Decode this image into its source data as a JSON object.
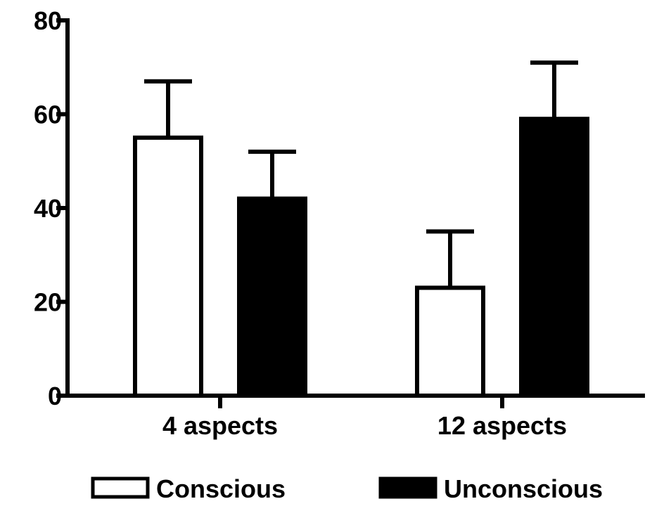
{
  "chart_data": {
    "type": "bar",
    "categories": [
      "4 aspects",
      "12 aspects"
    ],
    "series": [
      {
        "name": "Conscious",
        "values": [
          55,
          23
        ],
        "errors": [
          12,
          12
        ],
        "fill": "#ffffff"
      },
      {
        "name": "Unconscious",
        "values": [
          42,
          59
        ],
        "errors": [
          10,
          12
        ],
        "fill": "#000000"
      }
    ],
    "ylim": [
      0,
      80
    ],
    "yticks": [
      "0",
      "20",
      "40",
      "60",
      "80"
    ],
    "grid": false,
    "legend_position": "bottom",
    "title": "",
    "xlabel": "",
    "ylabel": ""
  }
}
